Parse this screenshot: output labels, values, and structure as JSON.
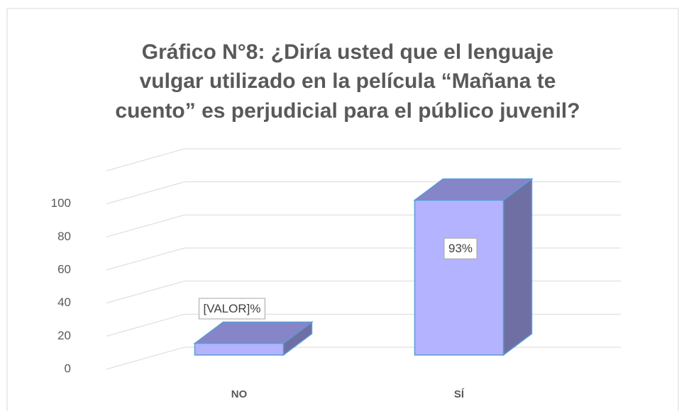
{
  "chart_data": {
    "type": "bar3d",
    "title_lines": [
      "Gráfico N°8: ¿Diría usted que el lenguaje",
      "vulgar utilizado en la película “Mañana te",
      "cuento” es perjudicial para el público juvenil?"
    ],
    "categories": [
      "NO",
      "SÍ"
    ],
    "values": [
      7,
      93
    ],
    "value_labels": [
      "[VALOR]%",
      "93%"
    ],
    "color": "#b3b3ff",
    "ylim": [
      0,
      120
    ],
    "yticks": [
      0,
      20,
      40,
      60,
      80,
      100
    ],
    "grid": true
  }
}
